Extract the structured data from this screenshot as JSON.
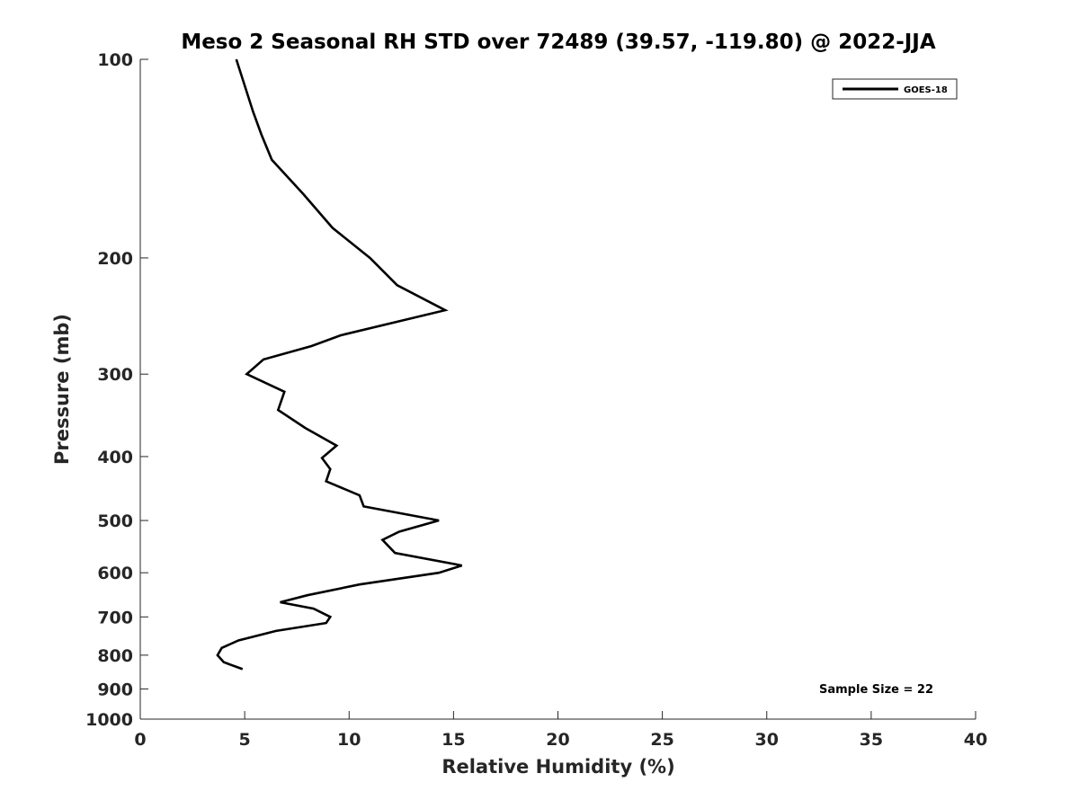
{
  "chart_data": {
    "type": "line",
    "title": "Meso 2 Seasonal RH STD over 72489 (39.57, -119.80) @ 2022-JJA",
    "xlabel": "Relative Humidity (%)",
    "ylabel": "Pressure (mb)",
    "xlim": [
      0,
      40
    ],
    "ylim": [
      100,
      1000
    ],
    "y_scale": "log",
    "y_reversed": true,
    "x_ticks": [
      "0",
      "5",
      "10",
      "15",
      "20",
      "25",
      "30",
      "35",
      "40"
    ],
    "y_ticks": [
      "100",
      "200",
      "300",
      "400",
      "500",
      "600",
      "700",
      "800",
      "900",
      "1000"
    ],
    "grid": false,
    "legend_position": "top-right",
    "series": [
      {
        "name": "GOES-18",
        "color": "#000000",
        "points": [
          {
            "x": 4.6,
            "y": 100
          },
          {
            "x": 5.4,
            "y": 120
          },
          {
            "x": 5.8,
            "y": 130
          },
          {
            "x": 6.3,
            "y": 142
          },
          {
            "x": 7.8,
            "y": 160
          },
          {
            "x": 9.2,
            "y": 180
          },
          {
            "x": 11.0,
            "y": 200
          },
          {
            "x": 12.3,
            "y": 220
          },
          {
            "x": 14.6,
            "y": 240
          },
          {
            "x": 9.6,
            "y": 262
          },
          {
            "x": 8.2,
            "y": 272
          },
          {
            "x": 5.9,
            "y": 285
          },
          {
            "x": 5.1,
            "y": 300
          },
          {
            "x": 6.9,
            "y": 319
          },
          {
            "x": 6.6,
            "y": 340
          },
          {
            "x": 7.9,
            "y": 362
          },
          {
            "x": 9.4,
            "y": 385
          },
          {
            "x": 8.7,
            "y": 402
          },
          {
            "x": 9.1,
            "y": 418
          },
          {
            "x": 8.9,
            "y": 436
          },
          {
            "x": 10.5,
            "y": 458
          },
          {
            "x": 10.7,
            "y": 476
          },
          {
            "x": 14.3,
            "y": 500
          },
          {
            "x": 12.4,
            "y": 520
          },
          {
            "x": 11.6,
            "y": 535
          },
          {
            "x": 12.2,
            "y": 560
          },
          {
            "x": 15.4,
            "y": 585
          },
          {
            "x": 14.3,
            "y": 600
          },
          {
            "x": 10.5,
            "y": 625
          },
          {
            "x": 8.0,
            "y": 649
          },
          {
            "x": 6.7,
            "y": 665
          },
          {
            "x": 8.3,
            "y": 680
          },
          {
            "x": 9.1,
            "y": 700
          },
          {
            "x": 8.9,
            "y": 715
          },
          {
            "x": 6.5,
            "y": 735
          },
          {
            "x": 4.7,
            "y": 760
          },
          {
            "x": 3.9,
            "y": 780
          },
          {
            "x": 3.7,
            "y": 800
          },
          {
            "x": 4.0,
            "y": 820
          },
          {
            "x": 4.9,
            "y": 840
          }
        ]
      }
    ],
    "annotation": "Sample Size = 22"
  }
}
